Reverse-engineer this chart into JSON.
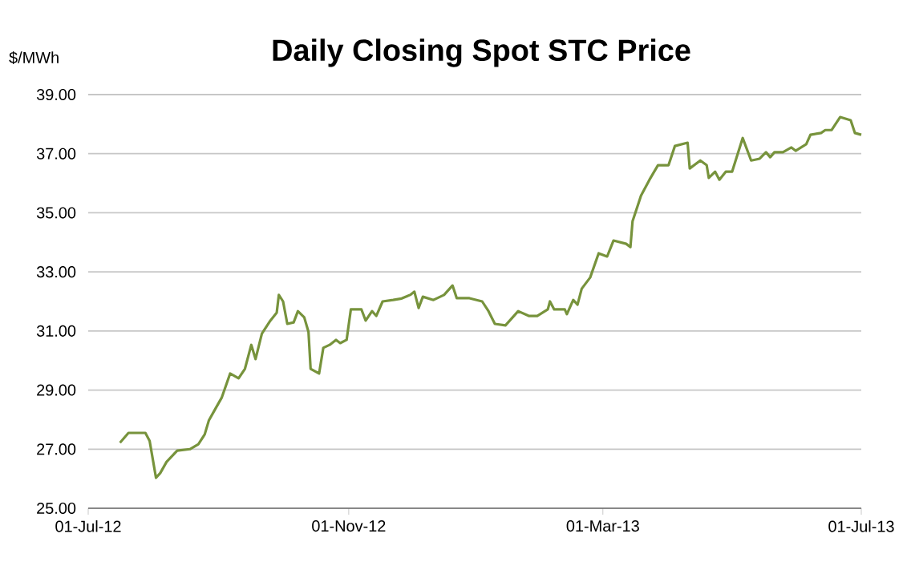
{
  "chart_data": {
    "type": "line",
    "title": "Daily Closing Spot STC Price",
    "ylabel": "$/MWh",
    "x": [
      "2012-07-16",
      "2012-07-20",
      "2012-07-28",
      "2012-07-30",
      "2012-08-02",
      "2012-08-04",
      "2012-08-07",
      "2012-08-12",
      "2012-08-18",
      "2012-08-22",
      "2012-08-25",
      "2012-08-27",
      "2012-08-30",
      "2012-09-02",
      "2012-09-06",
      "2012-09-10",
      "2012-09-13",
      "2012-09-16",
      "2012-09-18",
      "2012-09-21",
      "2012-09-25",
      "2012-09-28",
      "2012-09-29",
      "2012-10-01",
      "2012-10-03",
      "2012-10-06",
      "2012-10-08",
      "2012-10-11",
      "2012-10-13",
      "2012-10-14",
      "2012-10-18",
      "2012-10-20",
      "2012-10-23",
      "2012-10-26",
      "2012-10-28",
      "2012-10-31",
      "2012-11-02",
      "2012-11-07",
      "2012-11-09",
      "2012-11-12",
      "2012-11-14",
      "2012-11-17",
      "2012-11-22",
      "2012-11-26",
      "2012-11-30",
      "2012-12-02",
      "2012-12-04",
      "2012-12-06",
      "2012-12-11",
      "2012-12-16",
      "2012-12-20",
      "2012-12-22",
      "2012-12-28",
      "2013-01-03",
      "2013-01-06",
      "2013-01-09",
      "2013-01-14",
      "2013-01-20",
      "2013-01-25",
      "2013-01-29",
      "2013-02-03",
      "2013-02-04",
      "2013-02-06",
      "2013-02-11",
      "2013-02-12",
      "2013-02-15",
      "2013-02-17",
      "2013-02-19",
      "2013-02-23",
      "2013-02-27",
      "2013-03-03",
      "2013-03-06",
      "2013-03-12",
      "2013-03-14",
      "2013-03-15",
      "2013-03-19",
      "2013-03-23",
      "2013-03-27",
      "2013-04-01",
      "2013-04-04",
      "2013-04-10",
      "2013-04-11",
      "2013-04-16",
      "2013-04-19",
      "2013-04-20",
      "2013-04-23",
      "2013-04-25",
      "2013-04-28",
      "2013-05-01",
      "2013-05-06",
      "2013-05-10",
      "2013-05-14",
      "2013-05-17",
      "2013-05-19",
      "2013-05-21",
      "2013-05-25",
      "2013-05-29",
      "2013-05-31",
      "2013-06-05",
      "2013-06-07",
      "2013-06-12",
      "2013-06-14",
      "2013-06-17",
      "2013-06-21",
      "2013-06-26",
      "2013-06-28",
      "2013-07-01"
    ],
    "series": [
      {
        "color": "#77933c",
        "values": [
          27.22,
          27.55,
          27.55,
          27.28,
          26.03,
          26.19,
          26.57,
          26.95,
          27.0,
          27.17,
          27.5,
          27.98,
          28.36,
          28.74,
          29.56,
          29.4,
          29.72,
          30.53,
          30.05,
          30.91,
          31.35,
          31.62,
          32.22,
          32.0,
          31.24,
          31.29,
          31.67,
          31.46,
          30.97,
          29.72,
          29.56,
          30.43,
          30.53,
          30.7,
          30.59,
          30.7,
          31.73,
          31.73,
          31.35,
          31.67,
          31.51,
          32.0,
          32.05,
          32.1,
          32.22,
          32.33,
          31.78,
          32.16,
          32.05,
          32.22,
          32.54,
          32.11,
          32.11,
          32.0,
          31.67,
          31.24,
          31.19,
          31.67,
          31.51,
          31.51,
          31.73,
          32.0,
          31.73,
          31.73,
          31.57,
          32.05,
          31.89,
          32.43,
          32.81,
          33.63,
          33.52,
          34.06,
          33.95,
          33.84,
          34.71,
          35.58,
          36.12,
          36.61,
          36.61,
          37.26,
          37.37,
          36.5,
          36.77,
          36.61,
          36.18,
          36.39,
          36.12,
          36.39,
          36.39,
          37.53,
          36.77,
          36.83,
          37.05,
          36.88,
          37.05,
          37.05,
          37.21,
          37.1,
          37.32,
          37.64,
          37.7,
          37.8,
          37.8,
          38.24,
          38.13,
          37.7,
          37.64
        ]
      }
    ],
    "xlim": [
      "2012-07-01",
      "2013-07-01"
    ],
    "xticks": [
      {
        "value": "2012-07-01",
        "label": "01-Jul-12"
      },
      {
        "value": "2012-11-01",
        "label": "01-Nov-12"
      },
      {
        "value": "2013-03-01",
        "label": "01-Mar-13"
      },
      {
        "value": "2013-07-01",
        "label": "01-Jul-13"
      }
    ],
    "ylim": [
      25,
      39
    ],
    "yticks": [
      {
        "value": 25,
        "label": "25.00"
      },
      {
        "value": 27,
        "label": "27.00"
      },
      {
        "value": 29,
        "label": "29.00"
      },
      {
        "value": 31,
        "label": "31.00"
      },
      {
        "value": 33,
        "label": "33.00"
      },
      {
        "value": 35,
        "label": "35.00"
      },
      {
        "value": 37,
        "label": "37.00"
      },
      {
        "value": 39,
        "label": "39.00"
      }
    ],
    "grid": "y",
    "marker": "none",
    "line_style": "solid"
  }
}
